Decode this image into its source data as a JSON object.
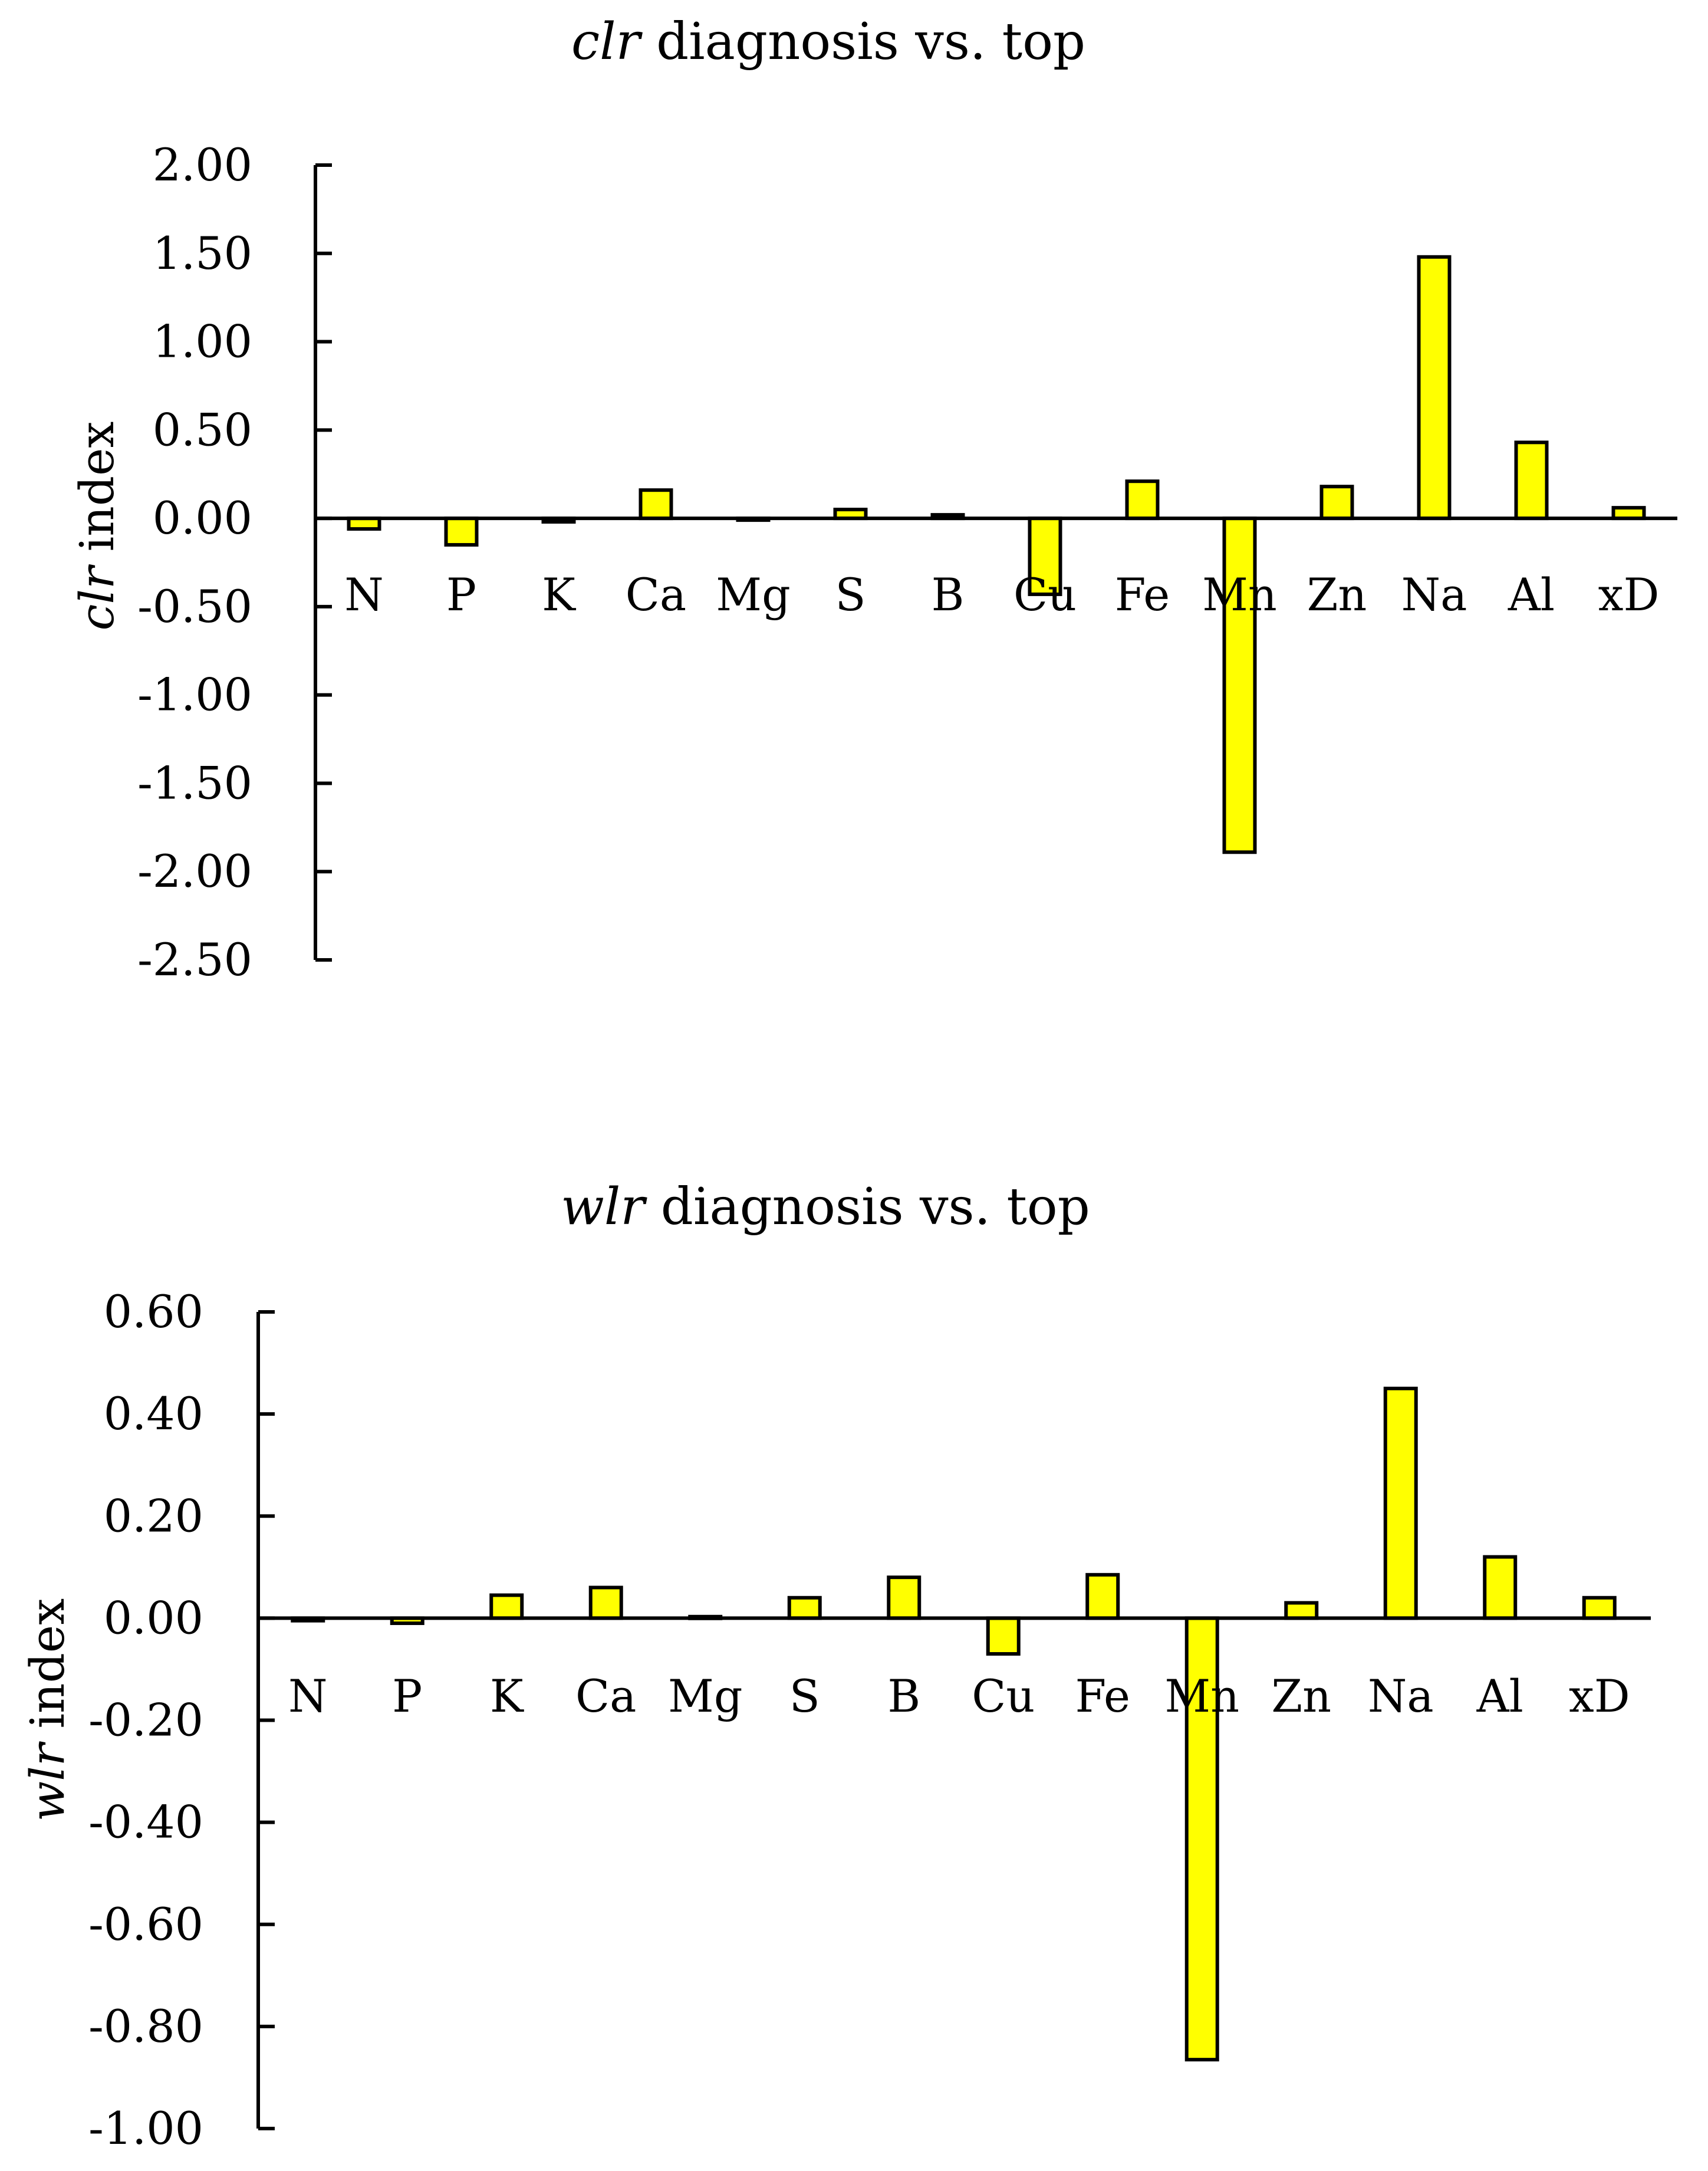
{
  "colors": {
    "bar_fill": "#ffff00",
    "bar_stroke": "#000000",
    "axis": "#000000",
    "background": "#ffffff"
  },
  "chart_data": [
    {
      "type": "bar",
      "title_italic": "clr",
      "title_rest": " diagnosis vs. top",
      "ylabel_italic": "clr",
      "ylabel_rest": " index",
      "xlabel": "",
      "categories": [
        "N",
        "P",
        "K",
        "Ca",
        "Mg",
        "S",
        "B",
        "Cu",
        "Fe",
        "Mn",
        "Zn",
        "Na",
        "Al",
        "xD"
      ],
      "values": [
        -0.06,
        -0.15,
        -0.02,
        0.16,
        -0.01,
        0.05,
        0.02,
        -0.43,
        0.21,
        -1.89,
        0.18,
        1.48,
        0.43,
        0.06
      ],
      "ylim": [
        -2.5,
        2.0
      ],
      "yticks": [
        "2.00",
        "1.50",
        "1.00",
        "0.50",
        "0.00",
        "-0.50",
        "-1.00",
        "-1.50",
        "-2.00",
        "-2.50"
      ],
      "grid": false,
      "legend": "none"
    },
    {
      "type": "bar",
      "title_italic": "wlr",
      "title_rest": " diagnosis vs. top",
      "ylabel_italic": "wlr",
      "ylabel_rest": " index",
      "xlabel": "",
      "categories": [
        "N",
        "P",
        "K",
        "Ca",
        "Mg",
        "S",
        "B",
        "Cu",
        "Fe",
        "Mn",
        "Zn",
        "Na",
        "Al",
        "xD"
      ],
      "values": [
        -0.005,
        -0.01,
        0.045,
        0.06,
        0.003,
        0.04,
        0.08,
        -0.07,
        0.085,
        -0.865,
        0.03,
        0.45,
        0.12,
        0.04
      ],
      "ylim": [
        -1.0,
        0.6
      ],
      "yticks": [
        "0.60",
        "0.40",
        "0.20",
        "0.00",
        "-0.20",
        "-0.40",
        "-0.60",
        "-0.80",
        "-1.00"
      ],
      "grid": false,
      "legend": "none"
    }
  ]
}
